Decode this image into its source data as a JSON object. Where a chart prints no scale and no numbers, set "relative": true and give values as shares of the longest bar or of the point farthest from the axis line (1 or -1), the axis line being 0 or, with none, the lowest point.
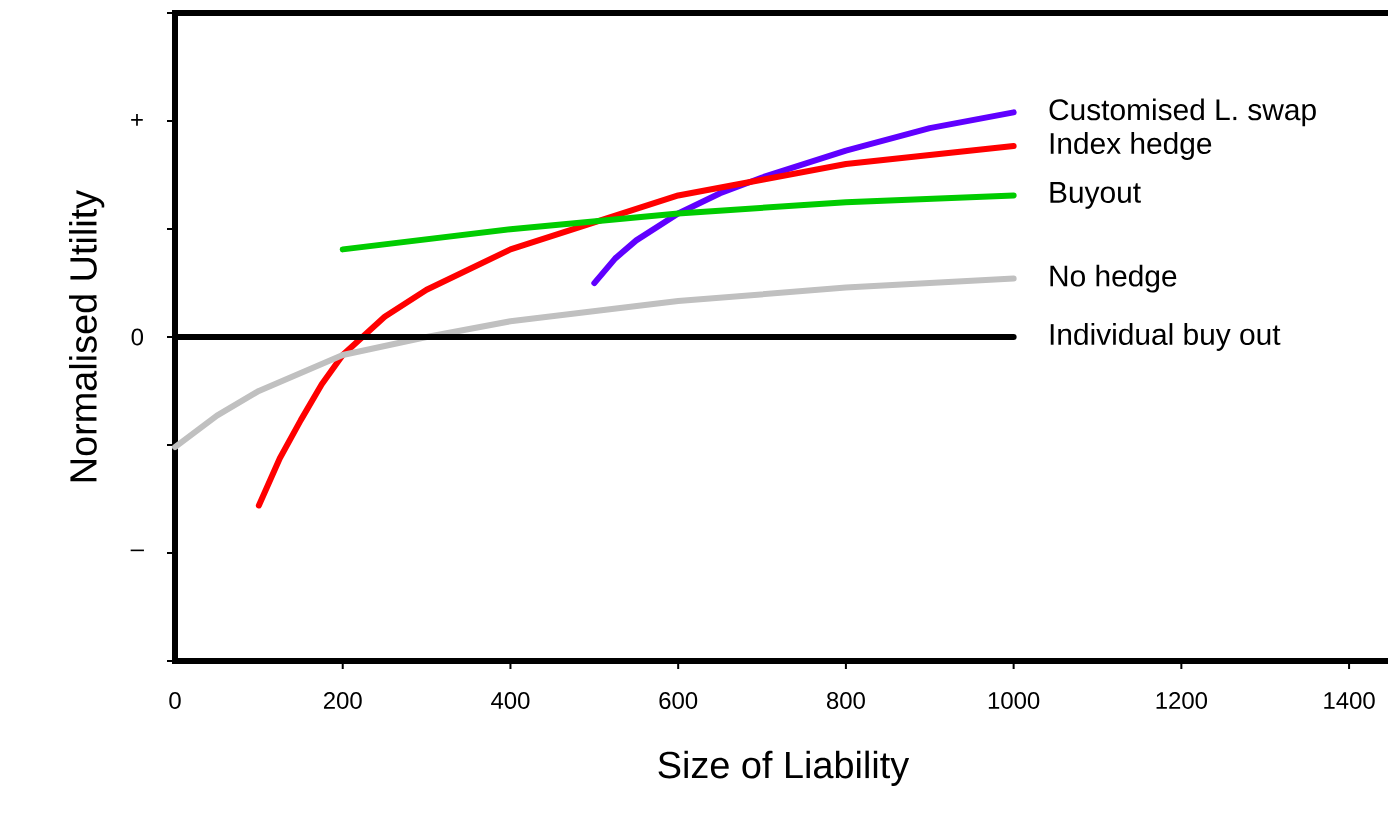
{
  "chart_data": {
    "type": "line",
    "relative": true,
    "xlabel": "Size of Liability",
    "ylabel": "Normalised Utility",
    "xlim": [
      0,
      1450
    ],
    "xticks": [
      0,
      200,
      400,
      600,
      800,
      1000,
      1200,
      1400
    ],
    "annotations": [
      "+",
      "0",
      "–"
    ],
    "series": [
      {
        "name": "Customised L. swap",
        "color": "#6000ff",
        "x": [
          500,
          525,
          550,
          600,
          650,
          700,
          800,
          900,
          1000
        ],
        "values": [
          0.24,
          0.35,
          0.43,
          0.55,
          0.64,
          0.71,
          0.83,
          0.93,
          1
        ]
      },
      {
        "name": "Index hedge",
        "color": "#ff0000",
        "x": [
          100,
          125,
          150,
          175,
          200,
          250,
          300,
          400,
          500,
          600,
          700,
          800,
          900,
          1000
        ],
        "values": [
          -0.75,
          -0.54,
          -0.37,
          -0.21,
          -0.08,
          0.09,
          0.21,
          0.39,
          0.51,
          0.63,
          0.7,
          0.77,
          0.81,
          0.85
        ]
      },
      {
        "name": "Buyout",
        "color": "#00cc00",
        "x": [
          200,
          400,
          600,
          800,
          1000
        ],
        "values": [
          0.39,
          0.48,
          0.55,
          0.6,
          0.63
        ]
      },
      {
        "name": "No hedge",
        "color": "#c0c0c0",
        "x": [
          0,
          50,
          100,
          200,
          300,
          400,
          600,
          800,
          1000
        ],
        "values": [
          -0.49,
          -0.35,
          -0.24,
          -0.08,
          0,
          0.07,
          0.16,
          0.22,
          0.26
        ]
      },
      {
        "name": "Individual buy out",
        "color": "#000000",
        "x": [
          0,
          1000
        ],
        "values": [
          0,
          0
        ]
      }
    ]
  }
}
